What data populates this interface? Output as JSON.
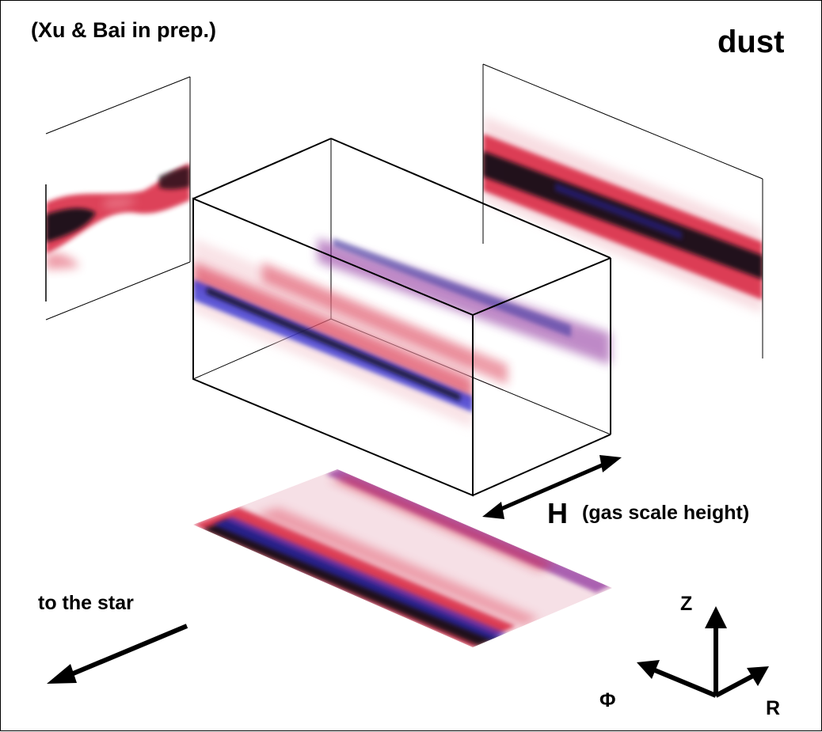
{
  "credit": "(Xu & Bai in prep.)",
  "title": "dust",
  "scale_bar": {
    "symbol": "H",
    "description": "(gas scale height)"
  },
  "direction_note": "to the star",
  "axes": {
    "z": "Z",
    "phi": "Φ",
    "r": "R"
  },
  "colors": {
    "low_density": "#f6e0e6",
    "mid_density": "#d8223d",
    "high_density": "#2a2ad0",
    "peak_density": "#0a0a14",
    "purple": "#8a2a9a"
  }
}
